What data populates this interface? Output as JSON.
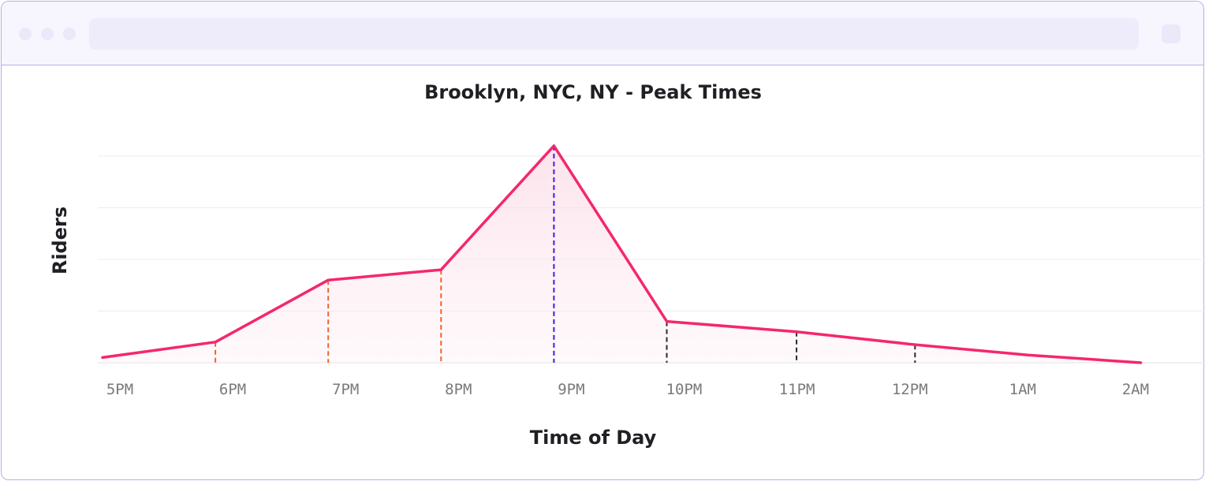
{
  "window": {
    "url_text": ""
  },
  "chart_data": {
    "type": "line",
    "title": "Brooklyn, NYC, NY - Peak Times",
    "xlabel": "Time of Day",
    "ylabel": "Riders",
    "categories": [
      "5PM",
      "6PM",
      "7PM",
      "8PM",
      "9PM",
      "10PM",
      "11PM",
      "12PM",
      "1AM",
      "2AM"
    ],
    "x": [
      0,
      1,
      2,
      3,
      4,
      5,
      6.15,
      7.2,
      8.2,
      9.2
    ],
    "y": [
      1.0,
      4.0,
      16.0,
      18.0,
      42.0,
      8.0,
      6.0,
      3.5,
      1.5,
      0.0
    ],
    "ylim": [
      0,
      40
    ],
    "grid": true,
    "legend": "none",
    "markers": [
      {
        "x": 1.0,
        "y": 4.0,
        "group": "rising"
      },
      {
        "x": 2.0,
        "y": 16.0,
        "group": "rising"
      },
      {
        "x": 3.0,
        "y": 18.0,
        "group": "rising"
      },
      {
        "x": 4.0,
        "y": 42.0,
        "group": "peak"
      },
      {
        "x": 5.0,
        "y": 8.0,
        "group": "falling"
      },
      {
        "x": 6.15,
        "y": 6.0,
        "group": "falling"
      },
      {
        "x": 7.2,
        "y": 3.5,
        "group": "falling"
      }
    ],
    "colors": {
      "line": "#f5276c",
      "fill": "#fde6ee",
      "rising": "#f0642c",
      "peak": "#3b1ee0",
      "falling": "#2a2a2a",
      "grid": "#ececec"
    }
  }
}
